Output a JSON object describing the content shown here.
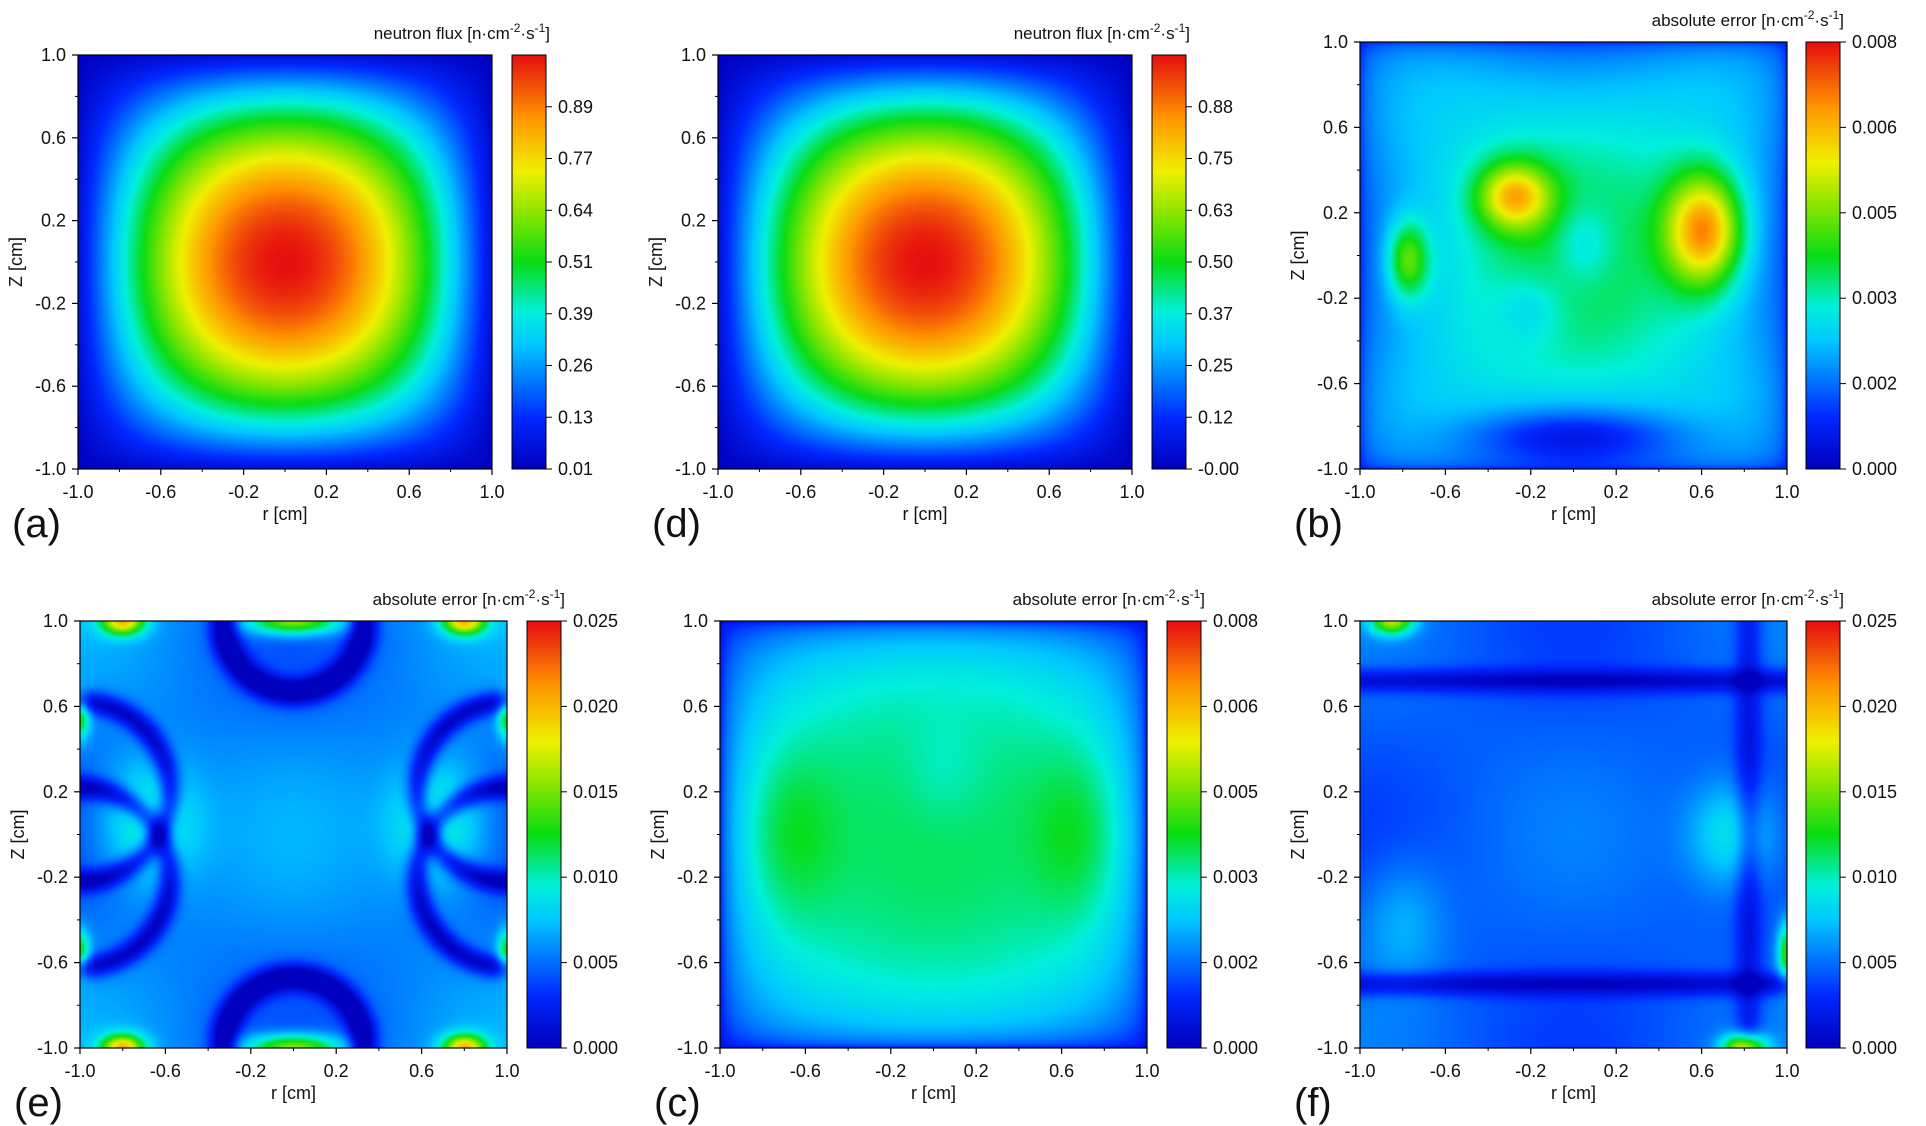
{
  "figure": {
    "panels_layout": [
      [
        "a",
        "d",
        "b"
      ],
      [
        "e",
        "c",
        "f"
      ]
    ]
  },
  "chart_data": [
    {
      "id": "a",
      "type": "heatmap",
      "panel_label": "(a)",
      "field": "flux",
      "xlabel": "r  [cm]",
      "ylabel": "Z  [cm]",
      "xlim": [
        -1.0,
        1.0
      ],
      "ylim": [
        -1.0,
        1.0
      ],
      "xticks": [
        "-1.0",
        "-0.6",
        "-0.2",
        "0.2",
        "0.6",
        "1.0"
      ],
      "yticks": [
        "1.0",
        "0.6",
        "0.2",
        "-0.2",
        "-0.6",
        "-1.0"
      ],
      "colorbar": {
        "title": "neutron flux",
        "unit": "[n·cm-2·s-1]",
        "range": [
          0.01,
          1.0
        ],
        "ticks": [
          "0.89",
          "0.77",
          "0.64",
          "0.51",
          "0.39",
          "0.26",
          "0.13",
          "0.01"
        ]
      }
    },
    {
      "id": "d",
      "type": "heatmap",
      "panel_label": "(d)",
      "field": "flux",
      "xlabel": "r  [cm]",
      "ylabel": "Z  [cm]",
      "xlim": [
        -1.0,
        1.0
      ],
      "ylim": [
        -1.0,
        1.0
      ],
      "xticks": [
        "-1.0",
        "-0.6",
        "-0.2",
        "0.2",
        "0.6",
        "1.0"
      ],
      "yticks": [
        "1.0",
        "0.6",
        "0.2",
        "-0.2",
        "-0.6",
        "-1.0"
      ],
      "colorbar": {
        "title": "neutron flux",
        "unit": "[n·cm-2·s-1]",
        "range": [
          0.0,
          1.0
        ],
        "ticks": [
          "0.88",
          "0.75",
          "0.63",
          "0.50",
          "0.37",
          "0.25",
          "0.12",
          "-0.00"
        ]
      }
    },
    {
      "id": "b",
      "type": "heatmap",
      "panel_label": "(b)",
      "field": "err_b",
      "xlabel": "r  [cm]",
      "ylabel": "Z  [cm]",
      "xlim": [
        -1.0,
        1.0
      ],
      "ylim": [
        -1.0,
        1.0
      ],
      "xticks": [
        "-1.0",
        "-0.6",
        "-0.2",
        "0.2",
        "0.6",
        "1.0"
      ],
      "yticks": [
        "1.0",
        "0.6",
        "0.2",
        "-0.2",
        "-0.6",
        "-1.0"
      ],
      "colorbar": {
        "title": "absolute error",
        "unit": "[n·cm-2·s-1]",
        "range": [
          0.0,
          0.008
        ],
        "ticks": [
          "0.008",
          "0.006",
          "0.005",
          "0.003",
          "0.002",
          "0.000"
        ]
      }
    },
    {
      "id": "e",
      "type": "heatmap",
      "panel_label": "(e)",
      "field": "err_e",
      "xlabel": "r  [cm]",
      "ylabel": "Z  [cm]",
      "xlim": [
        -1.0,
        1.0
      ],
      "ylim": [
        -1.0,
        1.0
      ],
      "xticks": [
        "-1.0",
        "-0.6",
        "-0.2",
        "0.2",
        "0.6",
        "1.0"
      ],
      "yticks": [
        "1.0",
        "0.6",
        "0.2",
        "-0.2",
        "-0.6",
        "-1.0"
      ],
      "colorbar": {
        "title": "absolute error",
        "unit": "[n·cm-2·s-1]",
        "range": [
          0.0,
          0.025
        ],
        "ticks": [
          "0.025",
          "0.020",
          "0.015",
          "0.010",
          "0.005",
          "0.000"
        ]
      }
    },
    {
      "id": "c",
      "type": "heatmap",
      "panel_label": "(c)",
      "field": "err_c",
      "xlabel": "r  [cm]",
      "ylabel": "Z  [cm]",
      "xlim": [
        -1.0,
        1.0
      ],
      "ylim": [
        -1.0,
        1.0
      ],
      "xticks": [
        "-1.0",
        "-0.6",
        "-0.2",
        "0.2",
        "0.6",
        "1.0"
      ],
      "yticks": [
        "1.0",
        "0.6",
        "0.2",
        "-0.2",
        "-0.6",
        "-1.0"
      ],
      "colorbar": {
        "title": "absolute error",
        "unit": "[n·cm-2·s-1]",
        "range": [
          0.0,
          0.008
        ],
        "ticks": [
          "0.008",
          "0.006",
          "0.005",
          "0.003",
          "0.002",
          "0.000"
        ]
      }
    },
    {
      "id": "f",
      "type": "heatmap",
      "panel_label": "(f)",
      "field": "err_f",
      "xlabel": "r  [cm]",
      "ylabel": "Z  [cm]",
      "xlim": [
        -1.0,
        1.0
      ],
      "ylim": [
        -1.0,
        1.0
      ],
      "xticks": [
        "-1.0",
        "-0.6",
        "-0.2",
        "0.2",
        "0.6",
        "1.0"
      ],
      "yticks": [
        "1.0",
        "0.6",
        "0.2",
        "-0.2",
        "-0.6",
        "-1.0"
      ],
      "colorbar": {
        "title": "absolute error",
        "unit": "[n·cm-2·s-1]",
        "range": [
          0.0,
          0.025
        ],
        "ticks": [
          "0.025",
          "0.020",
          "0.015",
          "0.010",
          "0.005",
          "0.000"
        ]
      }
    }
  ]
}
